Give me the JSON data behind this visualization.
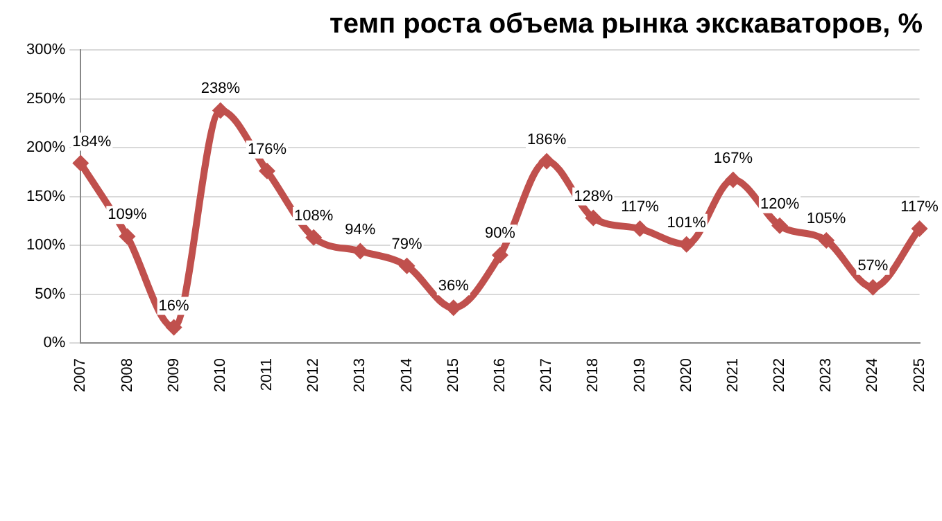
{
  "chart_data": {
    "type": "line",
    "title": "темп роста объема рынка экскаваторов, %",
    "categories": [
      "2007",
      "2008",
      "2009",
      "2010",
      "2011",
      "2012",
      "2013",
      "2014",
      "2015",
      "2016",
      "2017",
      "2018",
      "2019",
      "2020",
      "2021",
      "2022",
      "2023",
      "2024",
      "2025"
    ],
    "series": [
      {
        "color": "#c0504d",
        "values": [
          184,
          109,
          16,
          238,
          176,
          108,
          94,
          79,
          36,
          90,
          186,
          128,
          117,
          101,
          167,
          120,
          105,
          57,
          117
        ],
        "value_labels": [
          "184%",
          "109%",
          "16%",
          "238%",
          "176%",
          "108%",
          "94%",
          "79%",
          "36%",
          "90%",
          "186%",
          "128%",
          "117%",
          "101%",
          "167%",
          "120%",
          "105%",
          "57%",
          "117%"
        ]
      }
    ],
    "ylim": [
      0,
      300
    ],
    "yticks": [
      {
        "value": 0,
        "label": "0%"
      },
      {
        "value": 50,
        "label": "50%"
      },
      {
        "value": 100,
        "label": "100%"
      },
      {
        "value": 150,
        "label": "150%"
      },
      {
        "value": 200,
        "label": "200%"
      },
      {
        "value": 250,
        "label": "250%"
      },
      {
        "value": 300,
        "label": "300%"
      }
    ],
    "grid": "y",
    "legend": false,
    "marker": "diamond",
    "line_style": "solid"
  }
}
